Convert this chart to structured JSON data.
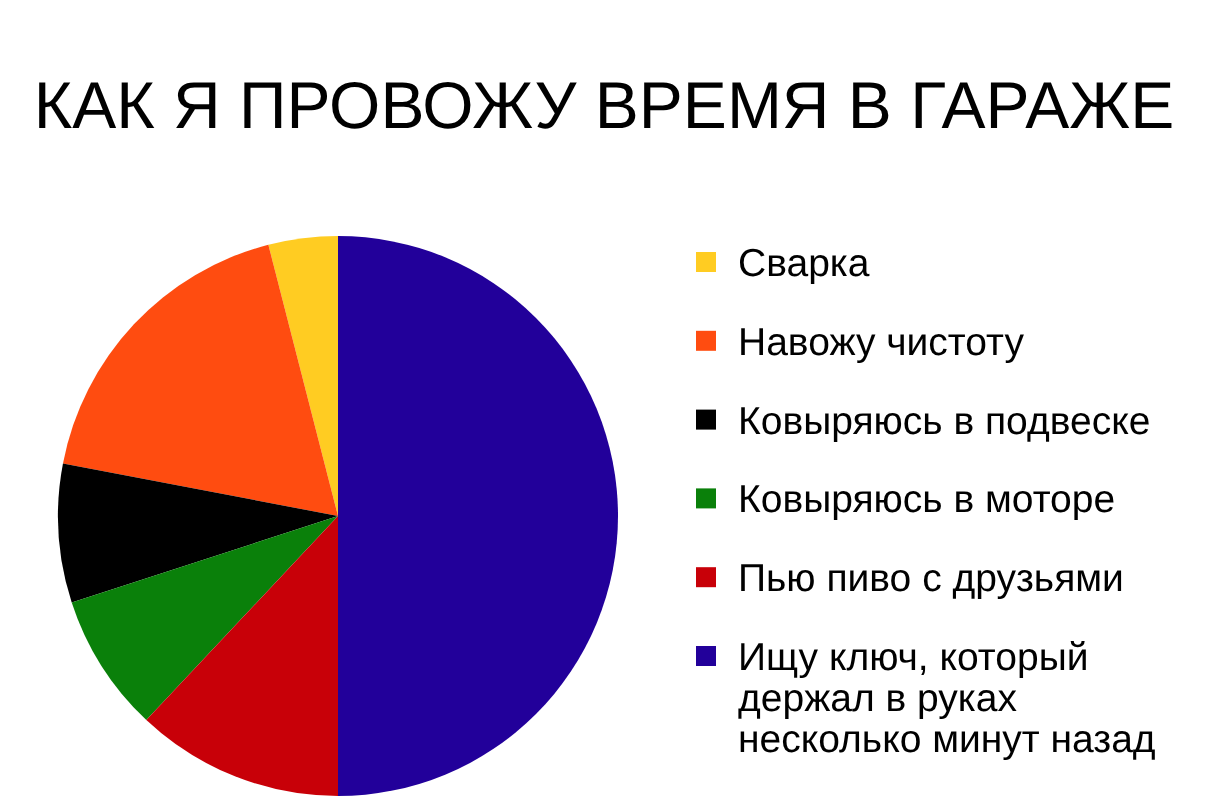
{
  "chart_data": {
    "type": "pie",
    "title": "КАК Я ПРОВОЖУ ВРЕМЯ В ГАРАЖЕ",
    "categories": [
      "Сварка",
      "Навожу чистоту",
      "Ковыряюсь в подвеске",
      "Ковыряюсь в моторе",
      "Пью пиво с друзьями",
      "Ищу ключ, который держал в руках несколько минут назад"
    ],
    "values": [
      4,
      18,
      8,
      8,
      12,
      50
    ],
    "colors": [
      "#ffcc22",
      "#ff4c10",
      "#000000",
      "#0a800a",
      "#c80008",
      "#22009a"
    ],
    "legend": "right"
  }
}
